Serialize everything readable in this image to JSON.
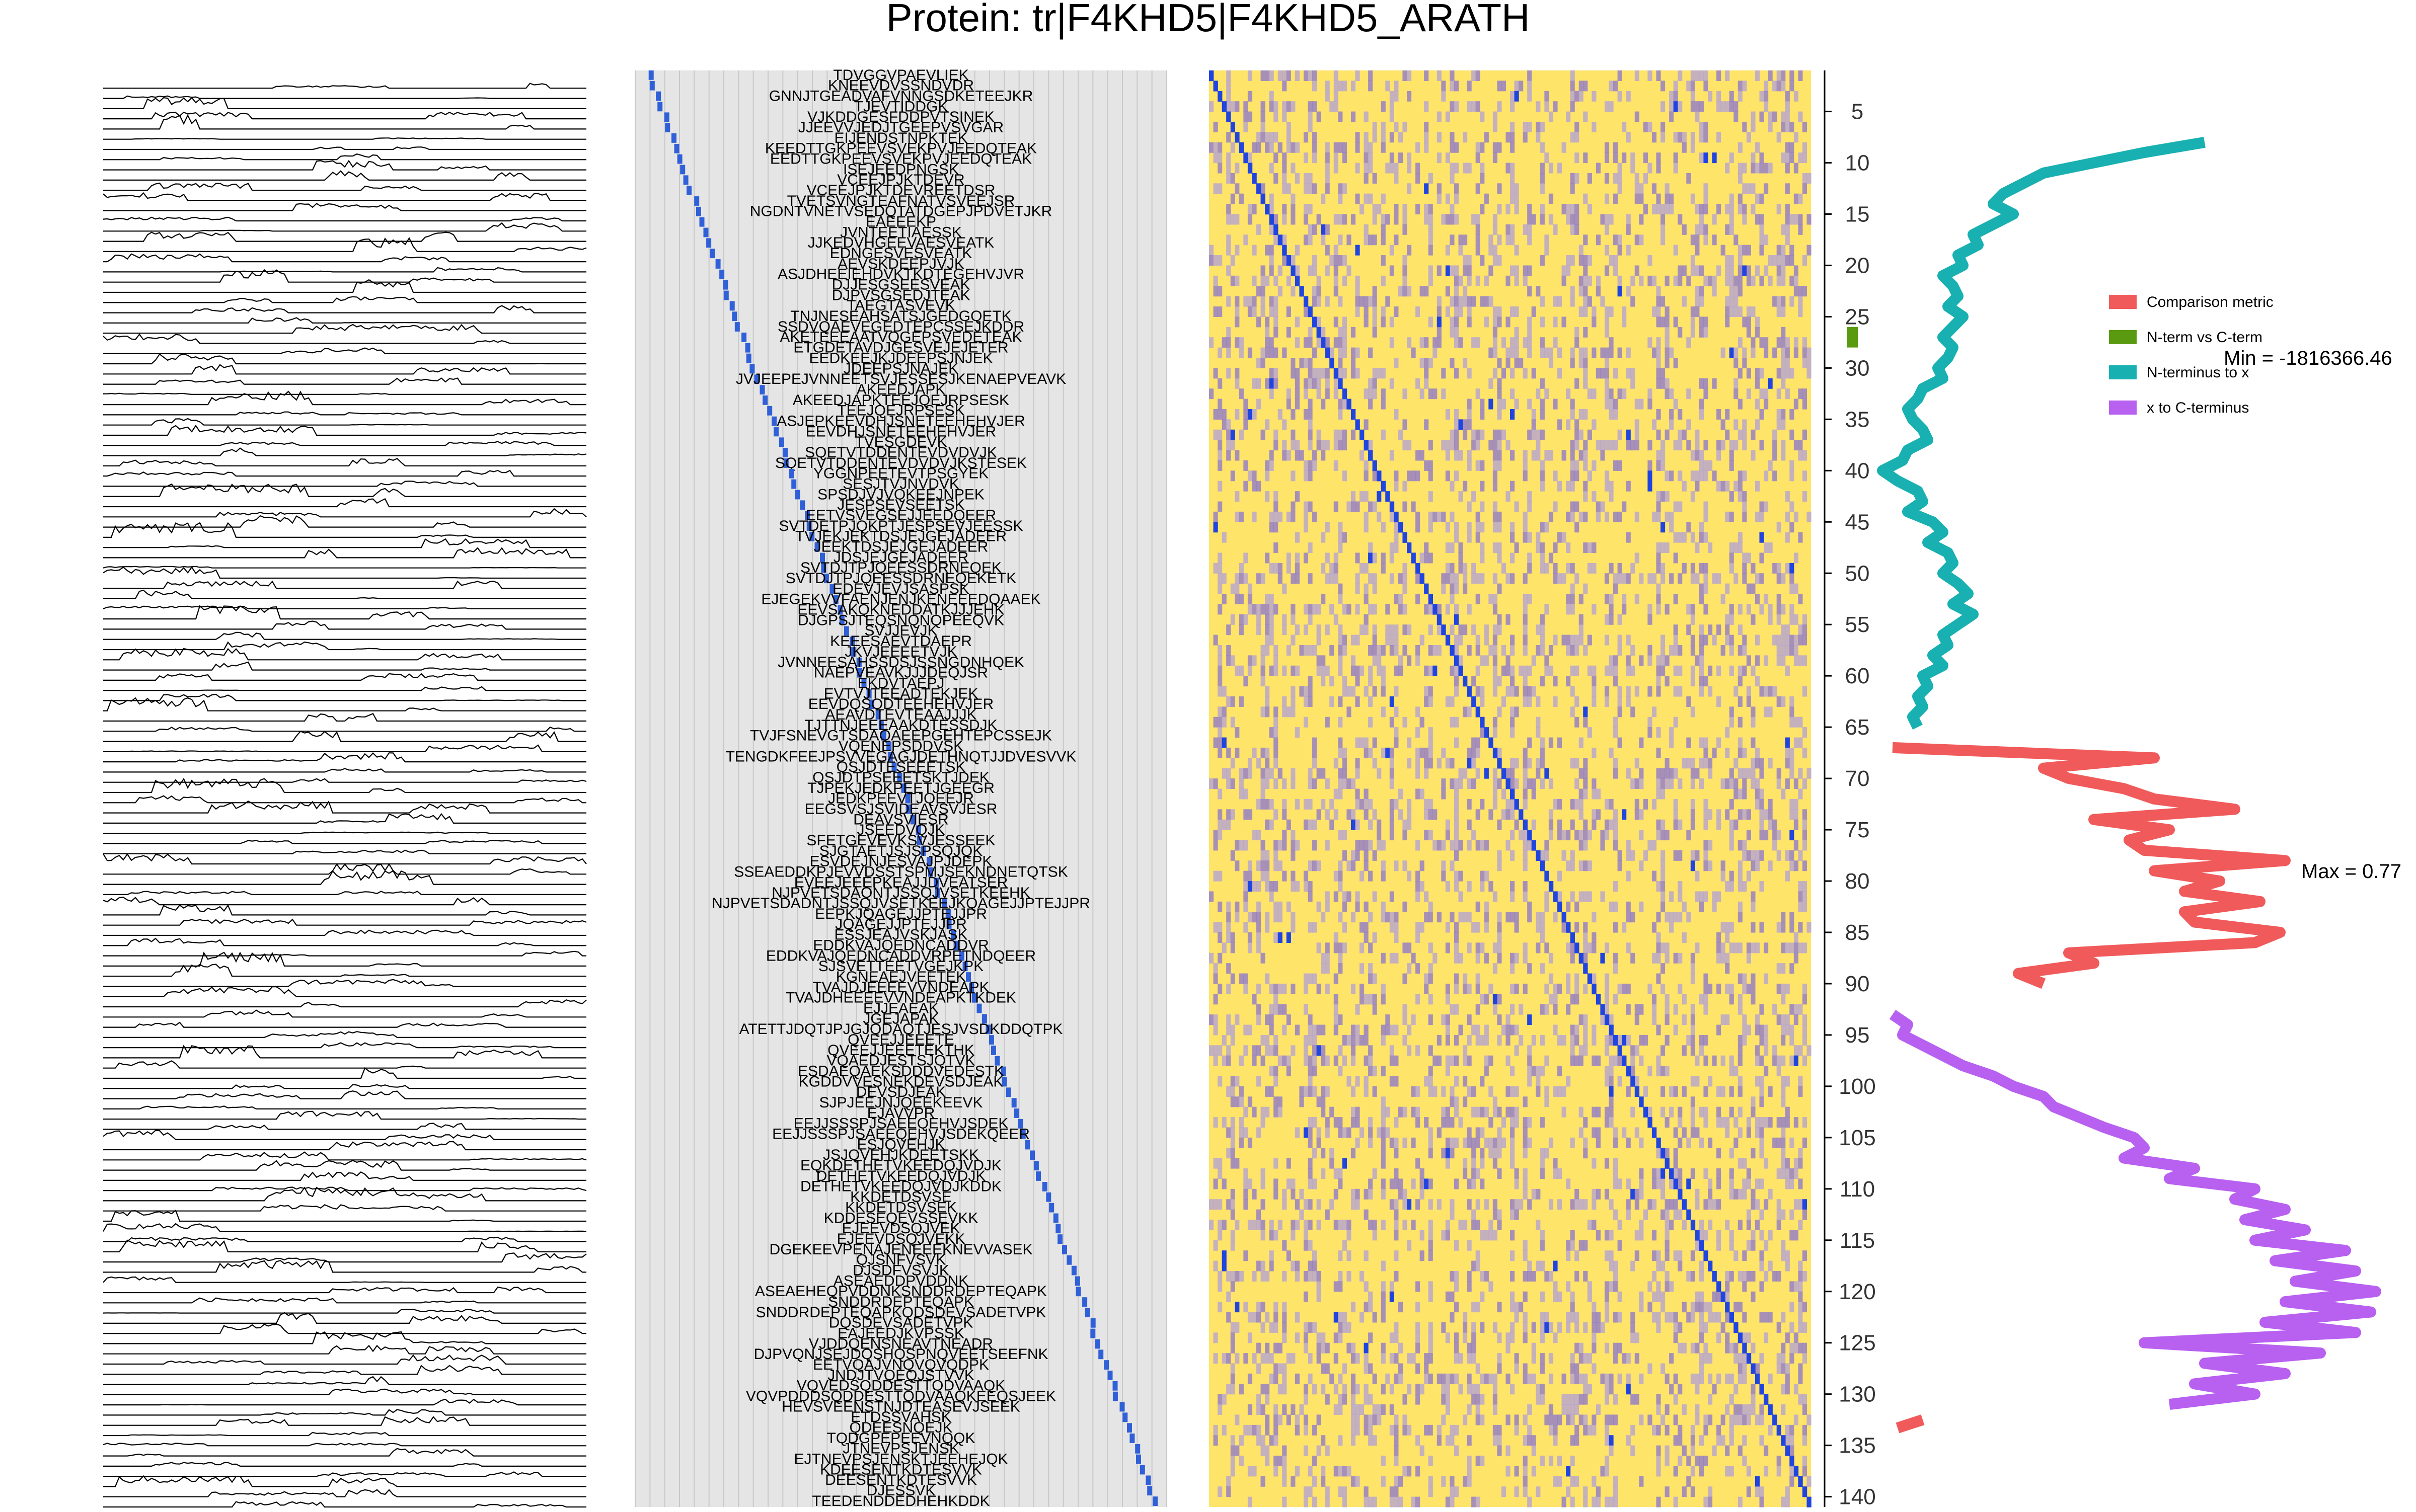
{
  "title": "Protein: tr|F4KHD5|F4KHD5_ARATH",
  "colors": {
    "trace": "#000000",
    "cover_bg": "#e5e5e5",
    "cover_grid": "#c8c8c8",
    "cover_line": "#3060d8",
    "heat_low": "#ffe46a",
    "heat_mid": "#b0a0d8",
    "heat_high": "#8a74d0",
    "heat_diag": "#2044e0",
    "comparison_metric": "#f05a5a",
    "nterm_vs_cterm": "#5a9a10",
    "nterm_to_x": "#18b0b0",
    "x_to_cterm": "#b860f0"
  },
  "chart_data": [
    {
      "type": "line",
      "panel": "peptide-intensity-traces",
      "n_traces": 140
    },
    {
      "type": "scatter",
      "panel": "peptide-coverage",
      "peptide_labels": [
        "TDVGGVPAEVLIEK",
        "KNEEVDVSSNDVDR",
        "GNNJTGEADVAFVNNGSDKETEEJKR",
        "TJEVTIDDGK",
        "VJKDDGESFDDPVTSINEK",
        "JJEEVVJEDJTGEEPVSVGAR",
        "EIJENDSTNPKTEK",
        "KEEDTTGKPEEVSVEKPVJEEDQTEAK",
        "EEDTTGKPEEVSVEKPVJEEDQTEAK",
        "ISEJEEDPNGSK",
        "VCEEJPJKTDEVR",
        "VCEEJPJKTDEVREETDSR",
        "TVETSVNGTEAFNATVSVEEJSR",
        "NGDNTVNETVSEDQTATDGEPJPDVETJKR",
        "EAEEEKP",
        "JVNTEETIAESSK",
        "JJKEDVHGEEVAESVEATK",
        "EDNGESVESVEATK",
        "AEVSKDEEPJVJK",
        "ASJDHEEIEHDVKTKDTEGEHVJVR",
        "DJJESGSEESVEAK",
        "DJPVSGSEDJTEAK",
        "TAEGTASVEVK",
        "TNJNESEAHSATSJGEDGQETK",
        "SSDVQAEVEGEDTEPCSSEJKDDR",
        "AKETEEEAATVQGEPSVEDETEAK",
        "ETGDETAVDJGESVEJEJETER",
        "EEDKEEJKJDEEPSJNJEK",
        "JDEEPSJNAJEK",
        "JVJEEPEJVNNEETSVJESSESJKENAEPVEAVK",
        "AKEEDJAPK",
        "AKEEDJAPKTEEJQEJRPSESK",
        "TEEJQEJRPSESK",
        "ASJEPKEEVDHJSNETEEHEHVJER",
        "EEVDHJSNETEEHEHVJER",
        "TVESGDEVK",
        "SQETVTDDENTEVDVDVJK",
        "SQETVTDDENTEVDVDVJKSTESEK",
        "YGGNPEETEVTPSGYEK",
        "SESJTVJNVDVK",
        "SPSDJVJVQKEEJNPEK",
        "JESPSEVSEETSK",
        "EETVSVEGSEJJEEDQEER",
        "SVTDETPJQKPTJESPSEVJEESSK",
        "TVJEKJEKTDSJEJGEJADEER",
        "JEEKTDSJEJGEJADEER",
        "JDSJEJGEJADEER",
        "SVTDJTPJQEESSDRNEQEK",
        "SVTDJTPJQEESSDRNEQEKETK",
        "EDEVJEVJSASPSK",
        "EJEGEKVVFAENJENJKENEEEDQAAEK",
        "EEVSAKQKNEDDATKJJJEHK",
        "DJGPSJTEQSNQNQPEEQVK",
        "SVJJEVJK",
        "KEEESAEVTDAEPR",
        "JKVJEEEETVJK",
        "JVNNEESAHSSDSJSSNGDNHQEK",
        "NAEPVEAVKJJJDEQJSR",
        "EKDVTAEPJ",
        "EVTVJTEEADTEKJEK",
        "EEVDQSQDTEEHEHVJER",
        "AEAVDTEVTEAAJJJK",
        "TJTTNJEEEAAKDTESSDJK",
        "TVJFSNEVGTSDAQAEEPGEHTEPCSSEJK",
        "VQENEPSDDVSK",
        "TENGDKFEEJPSVVEGAGJDETHNQTJJDVESVVK",
        "QSJDTESEEETSK",
        "QSJDTPSEEETSKTJDEK",
        "TJPEKJEDKPEETJGEEGR",
        "JEDKPEEVTJQEEJR",
        "EEGSVSJSVIDEAVSVJESR",
        "DEAVSVIESR",
        "JSEEDVQJK",
        "SFETGEVEVKSVJESSEEK",
        "SJGTAETJSJSPSQJQK",
        "ESVDEJNJESVAJPJDEPK",
        "SSEAEDDKPJEVVDSSTSPMJSEKNDNETQTSK",
        "EVEEJEEEPKEAJJDVEATSER",
        "NJPVETSDAQNTJSSQJVSETKEEHK",
        "NJPVETSDADNTJSSQJVSETKEEJKQAGEJJPTEJJPR",
        "EEPKJQAGEJJPTEJJPR",
        "JQAGEJJPTEJJPR",
        "ESSJEAJVSKJASK",
        "EDDKVAJQEDNCADDVR",
        "EDDKVAJQEDNCADDVRPETNDQEER",
        "SJSVETTEETVGEJKPK",
        "KGNEAEJVEETEK",
        "TVAJDJEEEEVVNDEAPK",
        "TVAJDHEEEEVVNDEAPKTKDEK",
        "EJJEAEAK",
        "JGEJAPAK",
        "ATETTJDQTJPJGJQDAQTJESJVSDKDDQTPK",
        "QVEEJJEEETE",
        "QVEEJJEEETEKTHK",
        "VQAEDJESTSJQTVK",
        "ESDAEQAEKSDDDVEDESTK",
        "KGDDVVESNEKDEVSDJEAK",
        "DEVSDJEAK",
        "SJPJEEJNJQEEKEEVK",
        "EJAVVPR",
        "EEJJSSSPJSAEEQEHVJSDEK",
        "EEJJSSSPJSAEEQEHVJSDEKQEER",
        "ESJQVEHJK",
        "JSJQVEHJKDEETSKK",
        "EQKDETHETVKEEDQJVDJK",
        "DETHETVKEEDQJVDJK",
        "DETHETVKEEDQJVDJKDDK",
        "KKDETDSVSE",
        "KKDETDSVSEK",
        "KDDESEQEVSSEVKK",
        "EJEEVDSQJVEK",
        "EJEEVDSQJVEKK",
        "DGEKEEVPENAJENEEEKNEVVASEK",
        "QJSNFVSVK",
        "DJSDFVSVJK",
        "ASEAEDDPVDDNK",
        "ASEAEHEQPVDDNKSNDDRDEPTEQAPK",
        "SNDDRDEPTEQAPK",
        "SNDDRDEPTEQAPKQDSDEVSADETVPK",
        "DQSDEVSADETVPK",
        "EAJEEDJKVPSSK",
        "VJDDQENSNEAVTNEADR",
        "DJPVQNJSEJDQSHQSPNQVEETSEEFNK",
        "EETVQAJVNQVQVQDPK",
        "JNDJTVQEQJSTVVK",
        "VQVEDSQDDESTTQDVAAQK",
        "VQVPDDDSQDDESTTQDVAAQKEEQSJEEK",
        "HEVSVEENSTNJDTEASEVJSEEK",
        "ETDSSVAHSK",
        "QDEESNQEJK",
        "TQDGPEPEEVNQQK",
        "JTNEVPSJENSK",
        "EJTNEVPSJENSKTJEEHEJQK",
        "KDEESENTKDTESVVK",
        "DEESENTKDTESVVK",
        "DJESSVK",
        "TEEDENDDEDHEHKDDK"
      ],
      "x_ticks": [
        5,
        10,
        15,
        20,
        25,
        30,
        35,
        40,
        45,
        50,
        55,
        60,
        65,
        70,
        75,
        80,
        85,
        90,
        95,
        100,
        105,
        110,
        115,
        120,
        125,
        130,
        135,
        140
      ]
    },
    {
      "type": "heatmap",
      "panel": "peptide-correlation-matrix",
      "n_rows": 140,
      "n_cols": 140,
      "diagonal": "max"
    },
    {
      "type": "line",
      "panel": "split-metric-profile",
      "y_axis": {
        "range": [
          1,
          141
        ],
        "ticks": [
          5,
          10,
          15,
          20,
          25,
          30,
          35,
          40,
          45,
          50,
          55,
          60,
          65,
          70,
          75,
          80,
          85,
          90,
          95,
          100,
          105,
          110,
          115,
          120,
          125,
          130,
          135,
          140
        ],
        "inverted": true
      },
      "legend": {
        "placement": "right",
        "entries": [
          "Comparison metric",
          "N-term vs C-term",
          "N-terminus to x",
          "x to C-terminus"
        ]
      },
      "annotations": {
        "min_label": "Min = -1816366.46",
        "max_label": "Max = 0.77"
      },
      "series": [
        {
          "name": "N-terminus to x",
          "y": [
            8,
            9,
            10,
            11,
            12,
            13,
            14,
            15,
            16,
            17,
            18,
            19,
            20,
            21,
            22,
            23,
            24,
            25,
            26,
            27,
            28,
            29,
            30,
            31,
            32,
            33,
            34,
            35,
            36,
            37,
            38,
            39,
            40,
            41,
            42,
            43,
            44,
            45,
            46,
            47,
            48,
            49,
            50,
            51,
            52,
            53,
            54,
            55,
            56,
            57,
            58,
            59,
            60,
            61,
            62,
            63,
            64,
            65
          ],
          "values": [
            0.62,
            0.5,
            0.4,
            0.3,
            0.26,
            0.22,
            0.2,
            0.24,
            0.2,
            0.16,
            0.17,
            0.13,
            0.14,
            0.1,
            0.12,
            0.13,
            0.11,
            0.14,
            0.12,
            0.1,
            0.12,
            0.11,
            0.09,
            0.1,
            0.06,
            0.05,
            0.03,
            0.04,
            0.06,
            0.07,
            0.03,
            0.02,
            -0.02,
            0.01,
            0.05,
            0.06,
            0.03,
            0.08,
            0.1,
            0.07,
            0.11,
            0.12,
            0.1,
            0.13,
            0.15,
            0.12,
            0.16,
            0.13,
            0.1,
            0.11,
            0.08,
            0.1,
            0.06,
            0.07,
            0.05,
            0.06,
            0.04,
            0.05
          ]
        },
        {
          "name": "N-term vs C-term",
          "y": [
            26,
            28
          ],
          "values": [
            -0.08,
            -0.08
          ]
        },
        {
          "name": "Comparison metric",
          "y": [
            67,
            68,
            69,
            70,
            71,
            72,
            73,
            74,
            75,
            76,
            77,
            78,
            79,
            80,
            81,
            82,
            83,
            84,
            85,
            86,
            87,
            88,
            89,
            90
          ],
          "values": [
            0.0,
            0.52,
            0.3,
            0.35,
            0.46,
            0.52,
            0.68,
            0.4,
            0.55,
            0.47,
            0.5,
            0.78,
            0.52,
            0.65,
            0.58,
            0.73,
            0.58,
            0.6,
            0.77,
            0.72,
            0.35,
            0.4,
            0.25,
            0.3
          ]
        },
        {
          "name": "x to C-terminus",
          "y": [
            93,
            94,
            95,
            96,
            97,
            98,
            99,
            100,
            101,
            102,
            103,
            104,
            105,
            106,
            107,
            108,
            109,
            110,
            111,
            112,
            113,
            114,
            115,
            116,
            117,
            118,
            119,
            120,
            121,
            122,
            123,
            124,
            125,
            126,
            127,
            128,
            129,
            130,
            131
          ],
          "values": [
            0.0,
            0.03,
            0.02,
            0.06,
            0.1,
            0.14,
            0.2,
            0.24,
            0.3,
            0.32,
            0.37,
            0.42,
            0.48,
            0.5,
            0.46,
            0.6,
            0.55,
            0.72,
            0.68,
            0.78,
            0.7,
            0.82,
            0.72,
            0.9,
            0.76,
            0.92,
            0.8,
            0.96,
            0.78,
            0.95,
            0.74,
            0.92,
            0.5,
            0.85,
            0.62,
            0.78,
            0.6,
            0.72,
            0.55
          ]
        }
      ]
    }
  ]
}
